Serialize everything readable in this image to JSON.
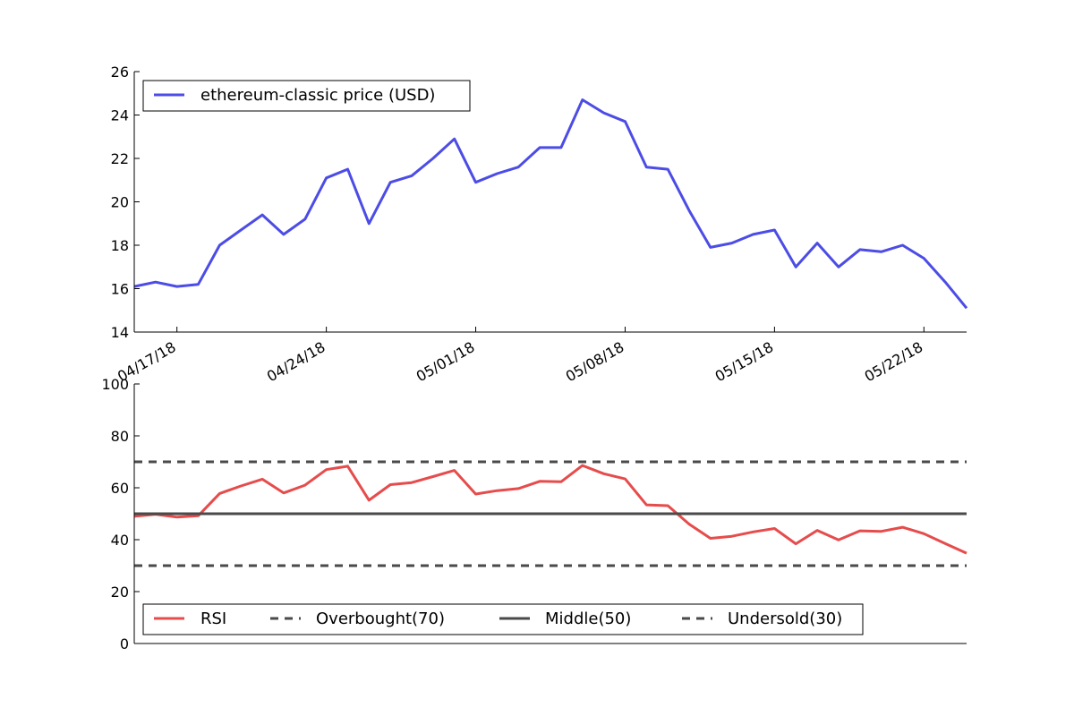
{
  "chart_data": [
    {
      "type": "line",
      "title": "",
      "xlabel": "",
      "ylabel": "",
      "ylim": [
        14,
        26
      ],
      "yticks": [
        14,
        16,
        18,
        20,
        22,
        24,
        26
      ],
      "xlim": [
        "2018-04-15",
        "2018-05-24"
      ],
      "xticks": [
        {
          "date": "2018-04-17",
          "label": "04/17/18"
        },
        {
          "date": "2018-04-24",
          "label": "04/24/18"
        },
        {
          "date": "2018-05-01",
          "label": "05/01/18"
        },
        {
          "date": "2018-05-08",
          "label": "05/08/18"
        },
        {
          "date": "2018-05-15",
          "label": "05/15/18"
        },
        {
          "date": "2018-05-22",
          "label": "05/22/18"
        }
      ],
      "legend_position": "top-left",
      "grid": false,
      "x": [
        "2018-04-15",
        "2018-04-16",
        "2018-04-17",
        "2018-04-18",
        "2018-04-19",
        "2018-04-20",
        "2018-04-21",
        "2018-04-22",
        "2018-04-23",
        "2018-04-24",
        "2018-04-25",
        "2018-04-26",
        "2018-04-27",
        "2018-04-28",
        "2018-04-29",
        "2018-04-30",
        "2018-05-01",
        "2018-05-02",
        "2018-05-03",
        "2018-05-04",
        "2018-05-05",
        "2018-05-06",
        "2018-05-07",
        "2018-05-08",
        "2018-05-09",
        "2018-05-10",
        "2018-05-11",
        "2018-05-12",
        "2018-05-13",
        "2018-05-14",
        "2018-05-15",
        "2018-05-16",
        "2018-05-17",
        "2018-05-18",
        "2018-05-19",
        "2018-05-20",
        "2018-05-21",
        "2018-05-22",
        "2018-05-23",
        "2018-05-24"
      ],
      "series": [
        {
          "name": "ethereum-classic price (USD)",
          "color": "#4c4ce6",
          "values": [
            16.1,
            16.3,
            16.1,
            16.2,
            18.0,
            18.7,
            19.4,
            18.5,
            19.2,
            21.1,
            21.5,
            19.0,
            20.9,
            21.2,
            22.0,
            22.9,
            20.9,
            21.3,
            21.6,
            22.5,
            22.5,
            24.7,
            24.1,
            23.7,
            21.6,
            21.5,
            19.6,
            17.9,
            18.1,
            18.5,
            18.7,
            17.0,
            18.1,
            17.0,
            17.8,
            17.7,
            18.0,
            17.4,
            16.3,
            15.1
          ]
        }
      ]
    },
    {
      "type": "line",
      "title": "",
      "xlabel": "",
      "ylabel": "",
      "ylim": [
        0,
        100
      ],
      "yticks": [
        0,
        20,
        40,
        60,
        80,
        100
      ],
      "xlim": [
        "2018-04-15",
        "2018-05-24"
      ],
      "legend_position": "bottom-left",
      "legend_columns": 4,
      "grid": false,
      "x": [
        "2018-04-15",
        "2018-04-16",
        "2018-04-17",
        "2018-04-18",
        "2018-04-19",
        "2018-04-20",
        "2018-04-21",
        "2018-04-22",
        "2018-04-23",
        "2018-04-24",
        "2018-04-25",
        "2018-04-26",
        "2018-04-27",
        "2018-04-28",
        "2018-04-29",
        "2018-04-30",
        "2018-05-01",
        "2018-05-02",
        "2018-05-03",
        "2018-05-04",
        "2018-05-05",
        "2018-05-06",
        "2018-05-07",
        "2018-05-08",
        "2018-05-09",
        "2018-05-10",
        "2018-05-11",
        "2018-05-12",
        "2018-05-13",
        "2018-05-14",
        "2018-05-15",
        "2018-05-16",
        "2018-05-17",
        "2018-05-18",
        "2018-05-19",
        "2018-05-20",
        "2018-05-21",
        "2018-05-22",
        "2018-05-23",
        "2018-05-24"
      ],
      "series": [
        {
          "name": "RSI",
          "color": "#e64c4c",
          "style": "solid",
          "values": [
            49,
            49.8,
            48.7,
            49.2,
            57.8,
            60.7,
            63.3,
            58.0,
            61.0,
            67.0,
            68.3,
            55.2,
            61.2,
            62.0,
            64.3,
            66.7,
            57.6,
            58.9,
            59.7,
            62.5,
            62.3,
            68.6,
            65.4,
            63.4,
            53.4,
            53.1,
            46.0,
            40.5,
            41.3,
            43.0,
            44.3,
            38.4,
            43.6,
            39.9,
            43.4,
            43.2,
            44.8,
            42.3,
            38.5,
            34.8
          ]
        },
        {
          "name": "Overbought(70)",
          "color": "#4a4a4a",
          "style": "dashed",
          "constant": 70
        },
        {
          "name": "Middle(50)",
          "color": "#4a4a4a",
          "style": "solid",
          "constant": 50
        },
        {
          "name": "Undersold(30)",
          "color": "#4a4a4a",
          "style": "dashed",
          "constant": 30
        }
      ]
    }
  ]
}
